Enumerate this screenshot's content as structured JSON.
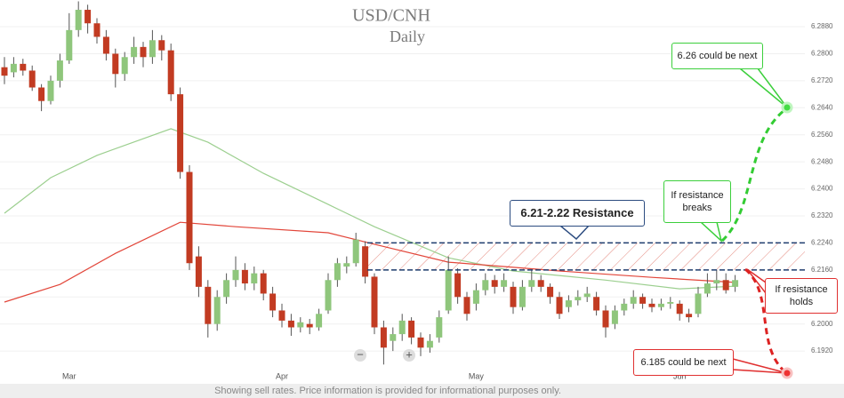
{
  "chart_data": {
    "type": "candlestick",
    "title": "USD/CNH",
    "subtitle": "Daily",
    "footer": "Showing sell rates. Price information is provided for informational purposes only.",
    "zoom": [
      "−",
      "+"
    ],
    "up_color": "#8fc67c",
    "down_color": "#c23b22",
    "ylim": [
      6.1823,
      6.2959
    ],
    "yticks": [
      {
        "value": 6.192,
        "label": "6.1920"
      },
      {
        "value": 6.2,
        "label": "6.2000"
      },
      {
        "value": 6.208,
        "label": "6.2080"
      },
      {
        "value": 6.216,
        "label": "6.2160"
      },
      {
        "value": 6.224,
        "label": "6.2240"
      },
      {
        "value": 6.232,
        "label": "6.2320"
      },
      {
        "value": 6.24,
        "label": "6.2400"
      },
      {
        "value": 6.248,
        "label": "6.2480"
      },
      {
        "value": 6.256,
        "label": "6.2560"
      },
      {
        "value": 6.264,
        "label": "6.2640"
      },
      {
        "value": 6.272,
        "label": "6.2720"
      },
      {
        "value": 6.28,
        "label": "6.2800"
      },
      {
        "value": 6.288,
        "label": "6.2880"
      }
    ],
    "categories": [
      null,
      null,
      null,
      null,
      null,
      null,
      null,
      "Mar",
      null,
      null,
      null,
      null,
      null,
      null,
      null,
      null,
      null,
      null,
      null,
      null,
      null,
      null,
      null,
      null,
      null,
      null,
      null,
      null,
      null,
      null,
      "Apr",
      null,
      null,
      null,
      null,
      null,
      null,
      null,
      null,
      null,
      null,
      null,
      null,
      null,
      null,
      null,
      null,
      null,
      null,
      null,
      null,
      "May",
      null,
      null,
      null,
      null,
      null,
      null,
      null,
      null,
      null,
      null,
      null,
      null,
      null,
      null,
      null,
      null,
      null,
      null,
      null,
      null,
      null,
      "Jun",
      null,
      null,
      null,
      null,
      null,
      null
    ],
    "open": [
      6.276,
      6.2745,
      6.277,
      6.275,
      6.27,
      6.266,
      6.272,
      6.278,
      6.287,
      6.293,
      6.289,
      6.285,
      6.28,
      6.274,
      6.279,
      6.282,
      6.279,
      6.284,
      6.281,
      6.268,
      6.245,
      6.22,
      6.211,
      6.2,
      6.208,
      6.213,
      6.216,
      6.212,
      6.215,
      6.209,
      6.204,
      6.201,
      6.199,
      6.2,
      6.199,
      6.204,
      6.213,
      6.217,
      6.218,
      6.223,
      6.214,
      6.199,
      6.195,
      6.197,
      6.201,
      6.196,
      6.193,
      6.196,
      6.204,
      6.215,
      6.208,
      6.206,
      6.21,
      6.213,
      6.211,
      6.211,
      6.205,
      6.211,
      6.213,
      6.211,
      6.208,
      6.205,
      6.207,
      6.208,
      6.208,
      6.204,
      6.2,
      6.204,
      6.206,
      6.208,
      6.206,
      6.205,
      6.206,
      6.206,
      6.203,
      6.203,
      6.209,
      6.212,
      6.213,
      6.211
    ],
    "high": [
      6.279,
      6.279,
      6.2785,
      6.2765,
      6.271,
      6.2735,
      6.28,
      6.292,
      6.2955,
      6.2945,
      6.2905,
      6.287,
      6.2815,
      6.2805,
      6.285,
      6.2835,
      6.287,
      6.2855,
      6.283,
      6.27,
      6.247,
      6.223,
      6.213,
      6.21,
      6.215,
      6.22,
      6.218,
      6.217,
      6.216,
      6.211,
      6.206,
      6.203,
      6.202,
      6.2015,
      6.2045,
      6.215,
      6.2195,
      6.22,
      6.227,
      6.2245,
      6.215,
      6.201,
      6.199,
      6.203,
      6.202,
      6.1975,
      6.197,
      6.204,
      6.22,
      6.2165,
      6.2095,
      6.212,
      6.215,
      6.2145,
      6.215,
      6.2125,
      6.213,
      6.216,
      6.2145,
      6.212,
      6.2095,
      6.2085,
      6.21,
      6.211,
      6.2095,
      6.2055,
      6.2055,
      6.2075,
      6.21,
      6.209,
      6.2075,
      6.2075,
      6.208,
      6.207,
      6.2045,
      6.211,
      6.215,
      6.216,
      6.215,
      6.2145
    ],
    "low": [
      6.271,
      6.273,
      6.2735,
      6.269,
      6.263,
      6.265,
      6.27,
      6.277,
      6.285,
      6.286,
      6.283,
      6.278,
      6.27,
      6.272,
      6.277,
      6.276,
      6.277,
      6.278,
      6.266,
      6.243,
      6.216,
      6.208,
      6.196,
      6.198,
      6.206,
      6.211,
      6.21,
      6.21,
      6.207,
      6.202,
      6.199,
      6.1965,
      6.1975,
      6.197,
      6.198,
      6.203,
      6.211,
      6.215,
      6.217,
      6.212,
      6.197,
      6.188,
      6.192,
      6.195,
      6.194,
      6.1905,
      6.1915,
      6.1945,
      6.203,
      6.206,
      6.201,
      6.204,
      6.2085,
      6.209,
      6.2095,
      6.203,
      6.204,
      6.2095,
      6.2095,
      6.206,
      6.2015,
      6.2035,
      6.2055,
      6.2065,
      6.2025,
      6.196,
      6.1985,
      6.2025,
      6.2045,
      6.2045,
      6.2035,
      6.204,
      6.2045,
      6.201,
      6.2005,
      6.202,
      6.208,
      6.21,
      6.209,
      6.2095
    ],
    "close": [
      6.2735,
      6.277,
      6.275,
      6.27,
      6.266,
      6.272,
      6.278,
      6.287,
      6.293,
      6.289,
      6.285,
      6.28,
      6.274,
      6.279,
      6.282,
      6.279,
      6.284,
      6.281,
      6.268,
      6.245,
      6.218,
      6.211,
      6.2,
      6.208,
      6.213,
      6.216,
      6.212,
      6.215,
      6.209,
      6.204,
      6.201,
      6.199,
      6.2005,
      6.199,
      6.203,
      6.213,
      6.218,
      6.218,
      6.225,
      6.214,
      6.199,
      6.193,
      6.197,
      6.201,
      6.196,
      6.193,
      6.195,
      6.202,
      6.216,
      6.208,
      6.203,
      6.21,
      6.213,
      6.211,
      6.213,
      6.205,
      6.211,
      6.213,
      6.211,
      6.208,
      6.203,
      6.207,
      6.208,
      6.209,
      6.204,
      6.199,
      6.204,
      6.206,
      6.208,
      6.206,
      6.205,
      6.206,
      6.2065,
      6.203,
      6.202,
      6.209,
      6.212,
      6.213,
      6.21,
      6.213
    ],
    "series": [
      {
        "color": "#9ccf8f",
        "x": [
          0,
          5,
          10,
          18,
          22,
          28,
          35,
          40,
          48,
          55,
          65,
          73,
          79
        ],
        "values": [
          6.2328,
          6.2433,
          6.2499,
          6.2578,
          6.2538,
          6.2446,
          6.2354,
          6.2288,
          6.2196,
          6.2157,
          6.213,
          6.2104,
          6.2112
        ]
      },
      {
        "color": "#e2463a",
        "x": [
          0,
          6,
          12,
          19,
          25,
          35,
          40,
          48,
          60,
          70,
          79
        ],
        "values": [
          6.2065,
          6.2117,
          6.2209,
          6.2301,
          6.2288,
          6.227,
          6.2236,
          6.2183,
          6.2157,
          6.2138,
          6.2123
        ]
      }
    ],
    "resistance": [
      6.216,
      6.224
    ],
    "annotations": [
      "6.21-2.22 Resistance",
      "If resistance breaks",
      "If resistance holds",
      "6.26 could be next",
      "6.185 could be next"
    ]
  }
}
